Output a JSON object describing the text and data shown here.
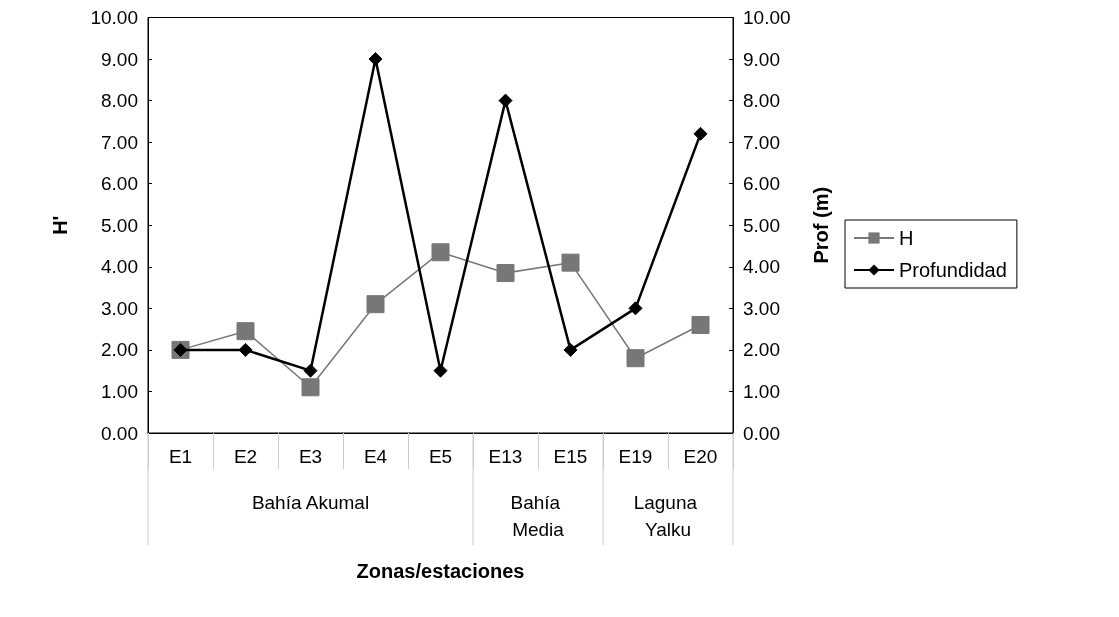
{
  "chart_data": {
    "type": "line",
    "xlabel": "Zonas/estaciones",
    "ylabel": "H'",
    "y2label": "Prof (m)",
    "categories": [
      "E1",
      "E2",
      "E3",
      "E4",
      "E5",
      "E13",
      "E15",
      "E19",
      "E20"
    ],
    "series": [
      {
        "name": "H",
        "color": "#777777",
        "marker": "square",
        "values": [
          2.0,
          2.45,
          1.1,
          3.1,
          4.35,
          3.85,
          4.1,
          1.8,
          2.6
        ]
      },
      {
        "name": "Profundidad",
        "color": "#000000",
        "marker": "diamond",
        "axis": "y2",
        "values": [
          2,
          2,
          1.5,
          9,
          1.5,
          8,
          2,
          3,
          7.2
        ]
      }
    ],
    "annotations": [
      "Bahía Akumal",
      "Bahía Media",
      "Laguna Yalku"
    ],
    "ylim": [
      0,
      10
    ],
    "yticks": [
      {
        "value": 0,
        "label": "0.00"
      },
      {
        "value": 1,
        "label": "1.00"
      },
      {
        "value": 2,
        "label": "2.00"
      },
      {
        "value": 3,
        "label": "3.00"
      },
      {
        "value": 4,
        "label": "4.00"
      },
      {
        "value": 5,
        "label": "5.00"
      },
      {
        "value": 6,
        "label": "6.00"
      },
      {
        "value": 7,
        "label": "7.00"
      },
      {
        "value": 8,
        "label": "8.00"
      },
      {
        "value": 9,
        "label": "9.00"
      },
      {
        "value": 10,
        "label": "10.00"
      }
    ],
    "y2lim": [
      0,
      10
    ],
    "y2ticks": [
      {
        "value": 0,
        "label": "0.00"
      },
      {
        "value": 1,
        "label": "1.00"
      },
      {
        "value": 2,
        "label": "2.00"
      },
      {
        "value": 3,
        "label": "3.00"
      },
      {
        "value": 4,
        "label": "4.00"
      },
      {
        "value": 5,
        "label": "5.00"
      },
      {
        "value": 6,
        "label": "6.00"
      },
      {
        "value": 7,
        "label": "7.00"
      },
      {
        "value": 8,
        "label": "8.00"
      },
      {
        "value": 9,
        "label": "9.00"
      },
      {
        "value": 10,
        "label": "10.00"
      }
    ],
    "grid": false,
    "legend": "right",
    "line_style": "solid"
  }
}
